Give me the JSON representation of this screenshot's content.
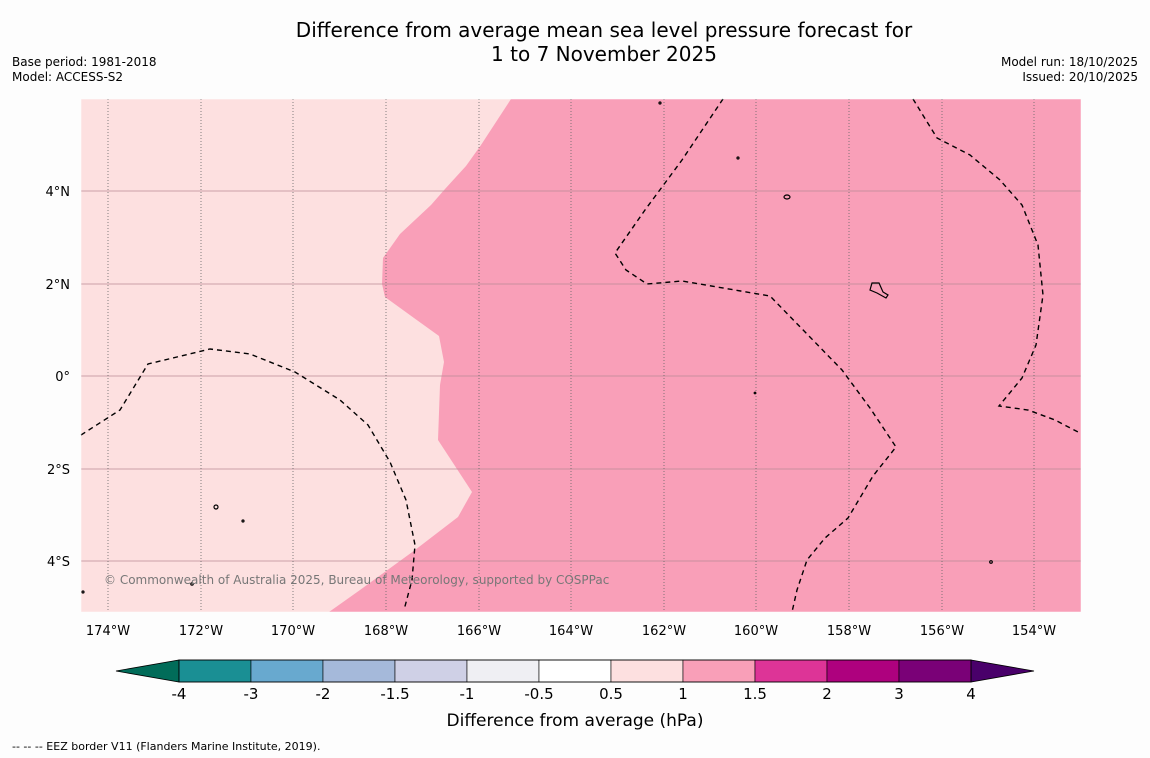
{
  "title_line1": "Difference from average mean sea level pressure forecast for",
  "title_line2": "1 to 7 November 2025",
  "base_period": "Base period: 1981-2018",
  "model": "Model: ACCESS-S2",
  "model_run": "Model run: 18/10/2025",
  "issued": "Issued: 20/10/2025",
  "copyright": "© Commonwealth of Australia 2025, Bureau of Meteorology, supported by COSPPac",
  "lon_labels": [
    "174°W",
    "172°W",
    "170°W",
    "168°W",
    "166°W",
    "164°W",
    "162°W",
    "160°W",
    "158°W",
    "156°W",
    "154°W"
  ],
  "lat_labels": [
    "4°N",
    "2°N",
    "0°",
    "2°S",
    "4°S"
  ],
  "colorbar": {
    "label": "Difference from average (hPa)",
    "ticks": [
      "-4",
      "-3",
      "-2",
      "-1.5",
      "-1",
      "-0.5",
      "0.5",
      "1",
      "1.5",
      "2",
      "3",
      "4"
    ],
    "colors": [
      "#1a8f94",
      "#68a9cf",
      "#a5b9da",
      "#cfd0e6",
      "#efeff3",
      "#ffffff",
      "#fde0e0",
      "#f99fb8",
      "#dd3497",
      "#ae017e",
      "#7a0177"
    ],
    "under_color": "#016c59",
    "over_color": "#49006a"
  },
  "field_colors": {
    "low_band": "#fde0e0",
    "high_band": "#f99fb8"
  },
  "legend_footer": "--  --  -- EEZ border V11 (Flanders Marine Institute, 2019)."
}
